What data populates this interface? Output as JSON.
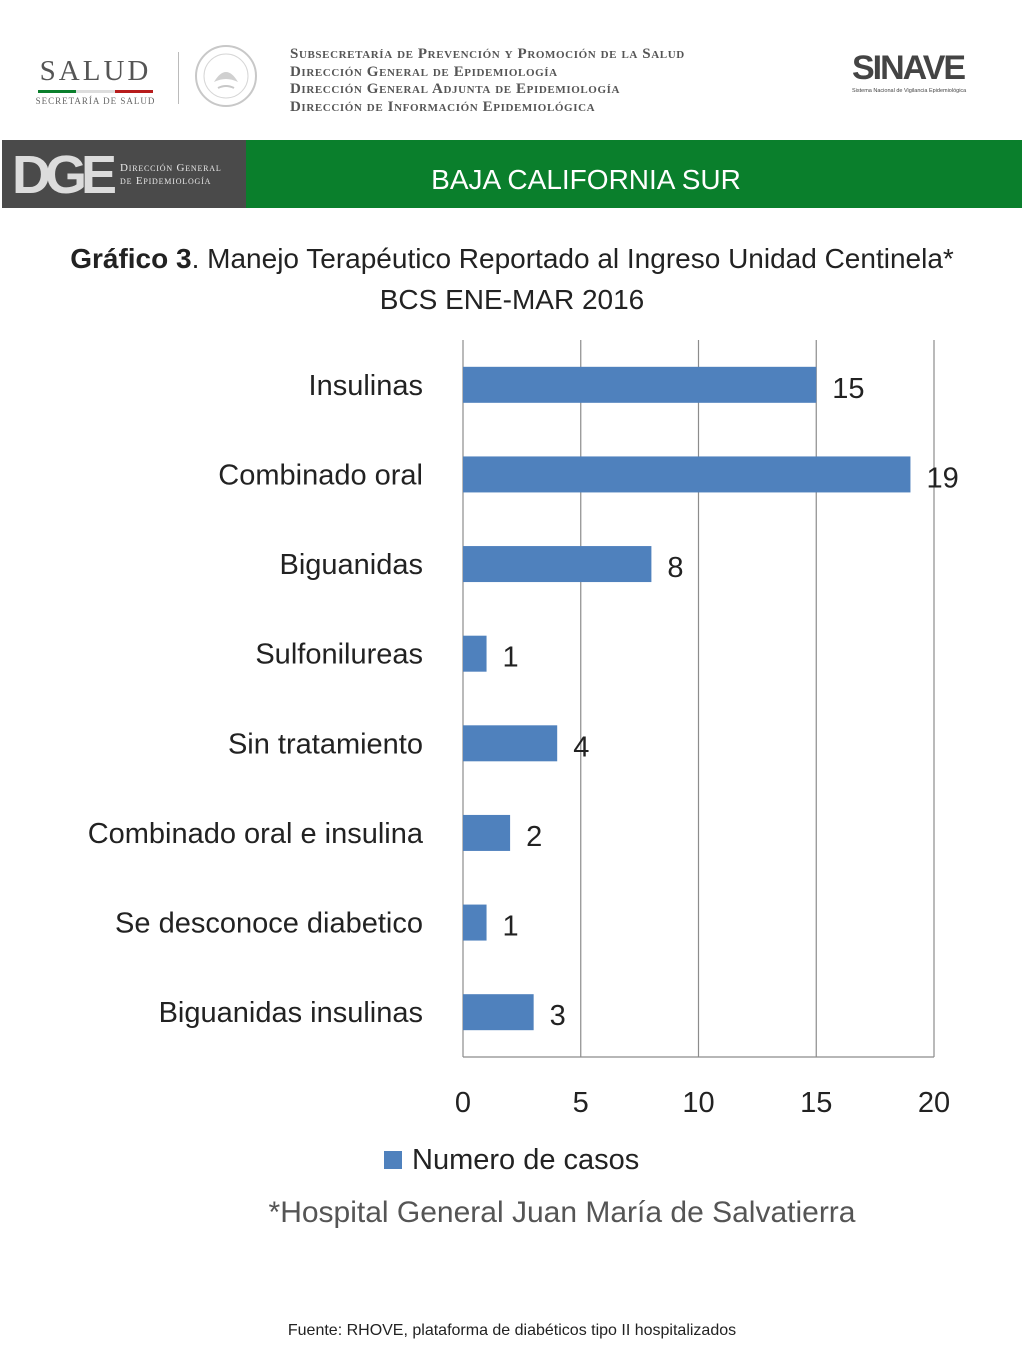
{
  "header": {
    "salud_logo_text": "SALUD",
    "salud_logo_subtext": "SECRETARÍA DE SALUD",
    "institution_lines": [
      "Subsecretaría de Prevención y Promoción de la Salud",
      "Dirección General de Epidemiología",
      "Dirección General Adjunta de Epidemiología",
      "Dirección de Información Epidemiológica"
    ],
    "sinave_logo_text": "SINAVE",
    "sinave_subtext": "Sistema Nacional de Vigilancia Epidemiológica"
  },
  "band": {
    "dge_mark": "DGE",
    "dge_text_line1": "Dirección General",
    "dge_text_line2": "de Epidemiología",
    "region": "BAJA CALIFORNIA SUR"
  },
  "title": {
    "bold": "Gráfico 3",
    "rest": ". Manejo Terapéutico Reportado al Ingreso Unidad Centinela* BCS ENE-MAR 2016"
  },
  "chart_data": {
    "type": "bar",
    "orientation": "horizontal",
    "categories": [
      "Insulinas",
      "Combinado oral",
      "Biguanidas",
      "Sulfonilureas",
      "Sin tratamiento",
      "Combinado oral e insulina",
      "Se desconoce diabetico",
      "Biguanidas insulinas"
    ],
    "series": [
      {
        "name": "Numero de casos",
        "values": [
          15,
          19,
          8,
          1,
          4,
          2,
          1,
          3
        ]
      }
    ],
    "xlim": [
      0,
      20
    ],
    "xticks": [
      0,
      5,
      10,
      15,
      20
    ],
    "grid": true,
    "legend_position": "bottom",
    "bar_color": "#4f81bd"
  },
  "footnote": "*Hospital General Juan María de Salvatierra",
  "source": "Fuente: RHOVE, plataforma de diabéticos tipo II hospitalizados"
}
